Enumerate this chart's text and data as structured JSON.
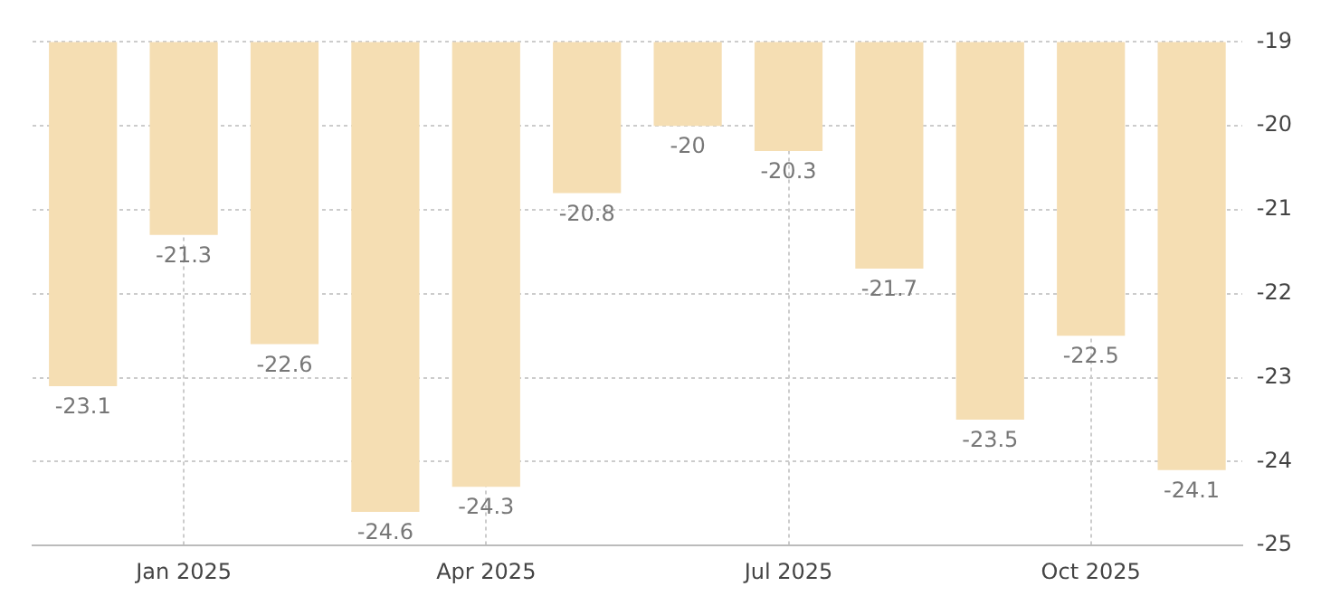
{
  "chart_data": {
    "type": "bar",
    "categories": [
      null,
      "Jan 2025",
      null,
      null,
      "Apr 2025",
      null,
      null,
      "Jul 2025",
      null,
      null,
      "Oct 2025",
      null
    ],
    "values": [
      -23.1,
      -21.3,
      -22.6,
      -24.6,
      -24.3,
      -20.8,
      -20,
      -20.3,
      -21.7,
      -23.5,
      -22.5,
      -24.1
    ],
    "color": "#f5deb3",
    "ylim": [
      -25,
      -19
    ],
    "yticks": [
      -25,
      -24,
      -23,
      -22,
      -21,
      -20,
      -19
    ],
    "grid": true,
    "data_labels": true,
    "legend": false
  }
}
